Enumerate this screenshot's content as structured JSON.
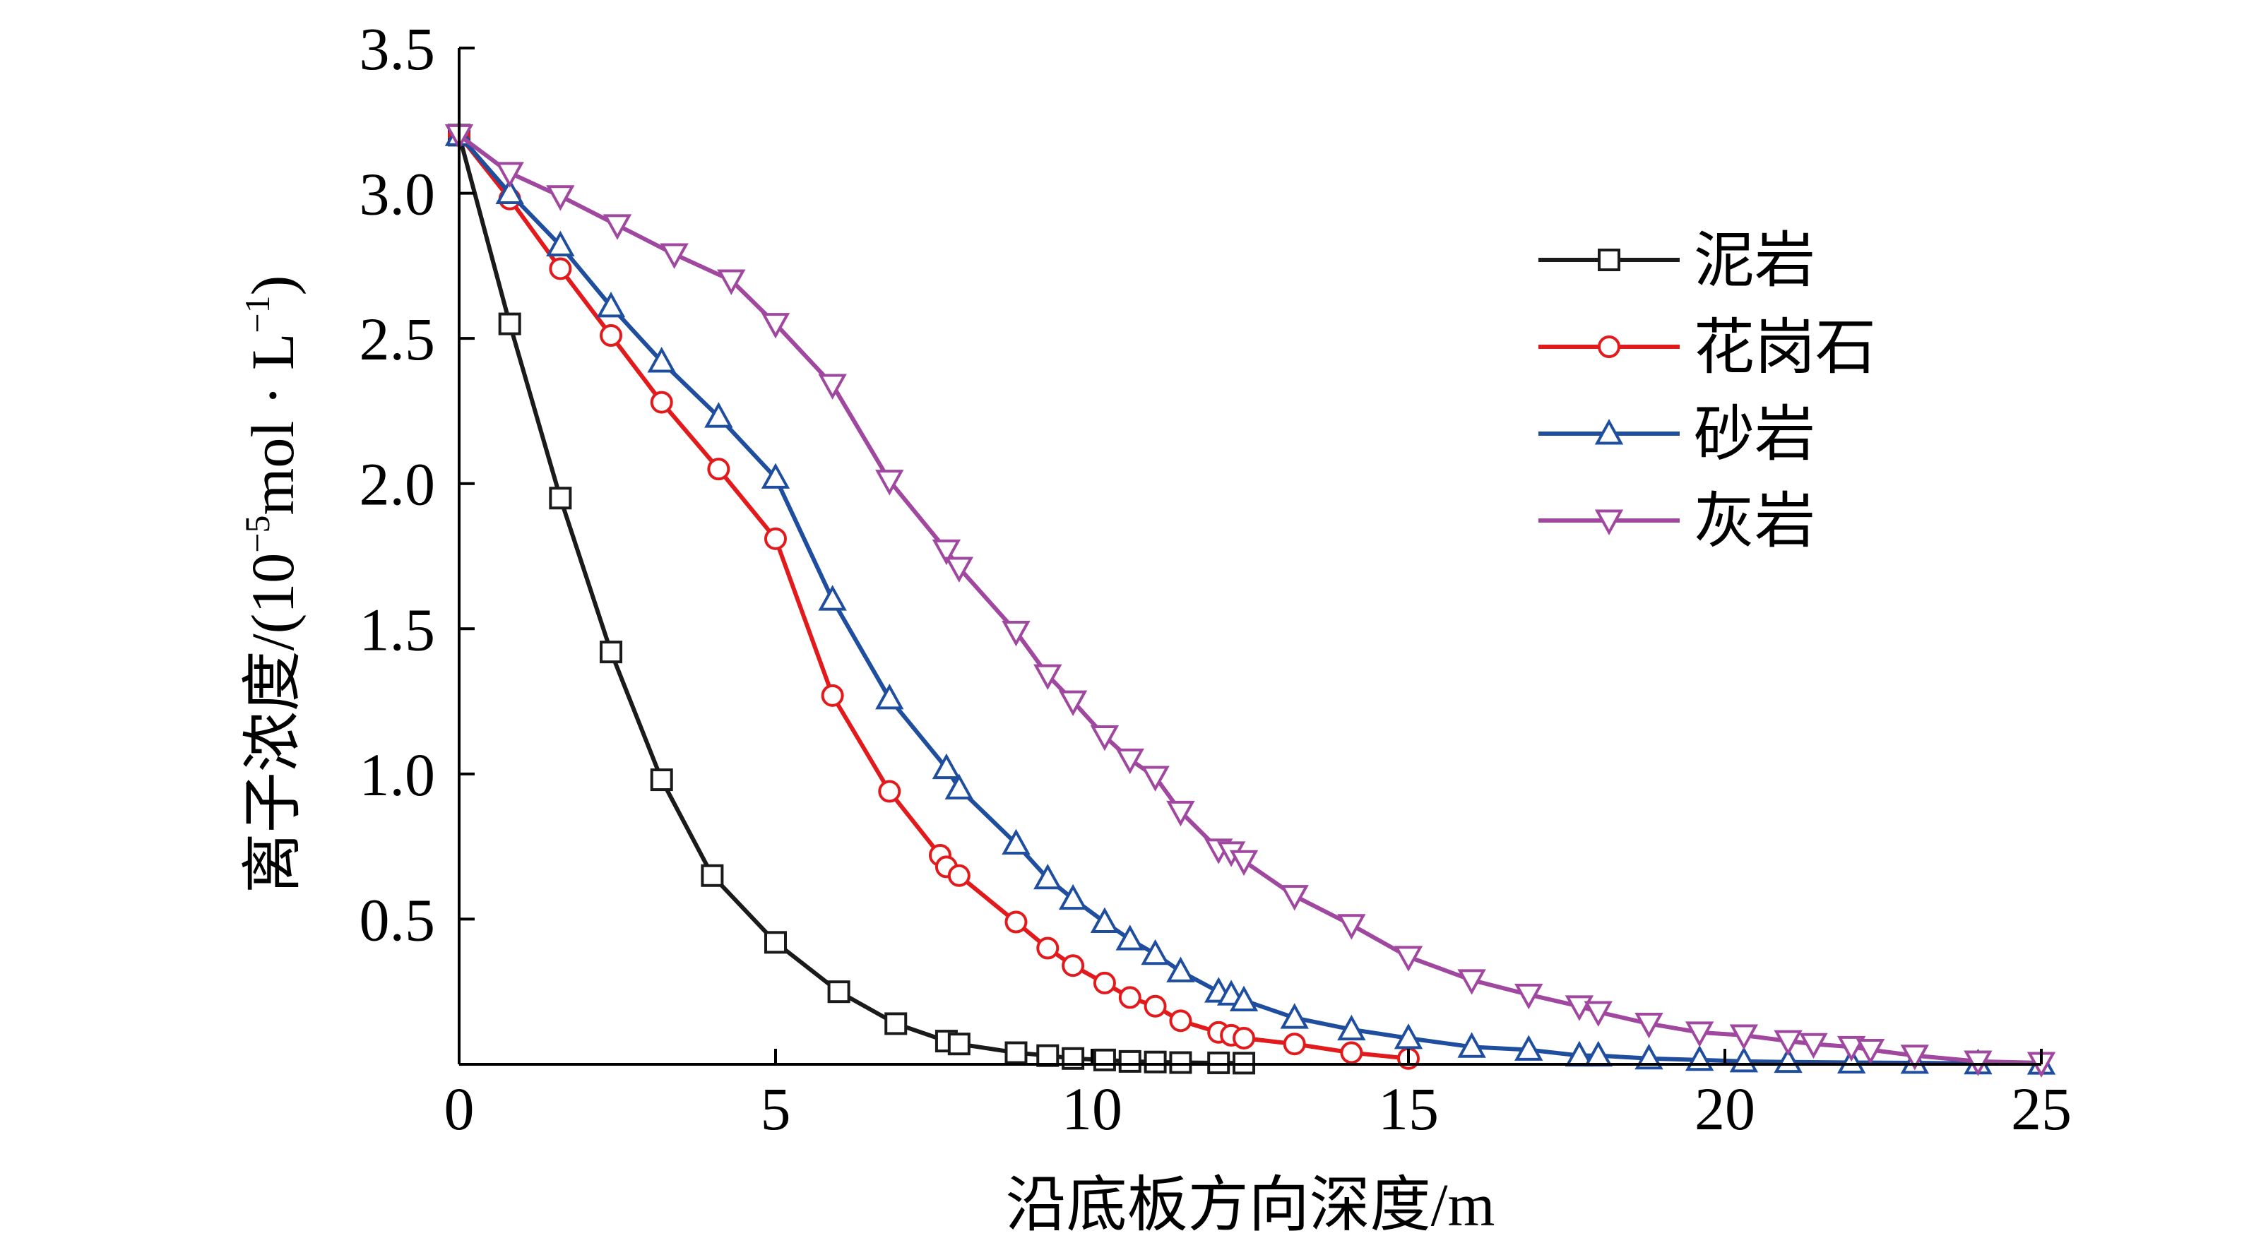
{
  "chart_data": {
    "type": "line",
    "xlabel": "沿底板方向深度/m",
    "ylabel": "离子浓度/(10⁻⁵mol·L⁻¹)",
    "ylabel_parts": {
      "prefix": "离子浓度/(10",
      "exp": "−5",
      "mid": "mol · L",
      "exp2": "−1",
      "suffix": ")"
    },
    "xlim": [
      0,
      25
    ],
    "ylim": [
      0,
      3.5
    ],
    "x_ticks": [
      0,
      5,
      10,
      15,
      20,
      25
    ],
    "x_tick_labels": [
      "0",
      "5",
      "10",
      "15",
      "20",
      "25"
    ],
    "y_ticks": [
      0.5,
      1.0,
      1.5,
      2.0,
      2.5,
      3.0,
      3.5
    ],
    "y_tick_labels": [
      "0.5",
      "1.0",
      "1.5",
      "2.0",
      "2.5",
      "3.0",
      "3.5"
    ],
    "grid": false,
    "legend_position": "top-right",
    "series": [
      {
        "name": "泥岩",
        "color": "#1a1a1a",
        "marker": "square",
        "x": [
          0,
          0.8,
          1.6,
          2.4,
          3.2,
          4.0,
          5.0,
          6.0,
          6.9,
          7.7,
          7.9,
          8.8,
          9.3,
          9.7,
          10.2,
          10.6,
          11.0,
          11.4,
          12.0,
          12.4
        ],
        "y": [
          3.2,
          2.55,
          1.95,
          1.42,
          0.98,
          0.65,
          0.42,
          0.25,
          0.14,
          0.08,
          0.07,
          0.04,
          0.03,
          0.02,
          0.015,
          0.01,
          0.008,
          0.006,
          0.005,
          0.004
        ]
      },
      {
        "name": "花岗石",
        "color": "#e31a1c",
        "marker": "circle",
        "x": [
          0,
          0.8,
          1.6,
          2.4,
          3.2,
          4.1,
          5.0,
          5.9,
          6.8,
          7.6,
          7.7,
          7.9,
          8.8,
          9.3,
          9.7,
          10.2,
          10.6,
          11.0,
          11.4,
          12.0,
          12.2,
          12.4,
          13.2,
          14.1,
          15.0
        ],
        "y": [
          3.2,
          2.98,
          2.74,
          2.51,
          2.28,
          2.05,
          1.81,
          1.27,
          0.94,
          0.72,
          0.68,
          0.65,
          0.49,
          0.4,
          0.34,
          0.28,
          0.23,
          0.2,
          0.15,
          0.11,
          0.1,
          0.09,
          0.07,
          0.04,
          0.02
        ]
      },
      {
        "name": "砂岩",
        "color": "#1f4e9f",
        "marker": "triangle-up",
        "x": [
          0,
          0.8,
          1.6,
          2.4,
          3.2,
          4.1,
          5.0,
          5.9,
          6.8,
          7.7,
          7.9,
          8.8,
          9.3,
          9.7,
          10.2,
          10.6,
          11.0,
          11.4,
          12.0,
          12.2,
          12.4,
          13.2,
          14.1,
          15.0,
          16.0,
          16.9,
          17.7,
          18.0,
          18.8,
          19.6,
          20.3,
          21.0,
          22.0,
          23.0,
          24.0,
          25.0
        ],
        "y": [
          3.2,
          3.0,
          2.82,
          2.61,
          2.42,
          2.23,
          2.02,
          1.6,
          1.26,
          1.02,
          0.95,
          0.76,
          0.64,
          0.57,
          0.49,
          0.43,
          0.38,
          0.32,
          0.25,
          0.24,
          0.22,
          0.16,
          0.12,
          0.09,
          0.06,
          0.05,
          0.03,
          0.03,
          0.02,
          0.015,
          0.01,
          0.008,
          0.006,
          0.005,
          0.003,
          0.002
        ]
      },
      {
        "name": "灰岩",
        "color": "#a0479f",
        "marker": "triangle-down",
        "x": [
          0,
          0.8,
          1.6,
          2.5,
          3.4,
          4.3,
          5.0,
          5.9,
          6.8,
          7.7,
          7.9,
          8.8,
          9.3,
          9.7,
          10.2,
          10.6,
          11.0,
          11.4,
          12.0,
          12.2,
          12.4,
          13.2,
          14.1,
          15.0,
          16.0,
          16.9,
          17.7,
          18.0,
          18.8,
          19.6,
          20.3,
          21.0,
          21.4,
          22.0,
          22.3,
          23.0,
          24.0,
          25.0
        ],
        "y": [
          3.2,
          3.07,
          2.99,
          2.89,
          2.79,
          2.7,
          2.55,
          2.34,
          2.01,
          1.77,
          1.71,
          1.49,
          1.34,
          1.25,
          1.13,
          1.05,
          0.99,
          0.87,
          0.74,
          0.73,
          0.7,
          0.58,
          0.48,
          0.37,
          0.29,
          0.24,
          0.2,
          0.18,
          0.14,
          0.11,
          0.1,
          0.08,
          0.07,
          0.06,
          0.05,
          0.03,
          0.01,
          0.005
        ]
      }
    ]
  }
}
